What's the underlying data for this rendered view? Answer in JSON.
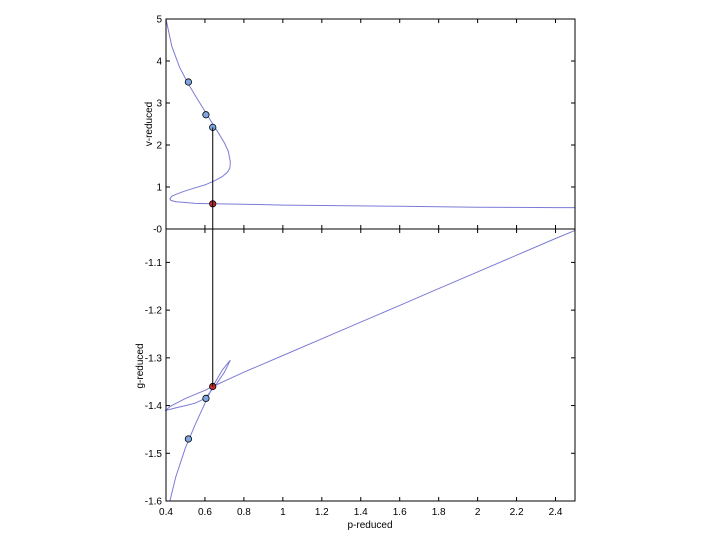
{
  "chart_data": [
    {
      "id": "top",
      "type": "line",
      "ylabel": "v-reduced",
      "xlabel": "",
      "xlim": [
        0.4,
        2.5
      ],
      "ylim": [
        0,
        5
      ],
      "yticks": [
        0,
        1,
        2,
        3,
        4,
        5
      ],
      "ytick_labels": [
        "-0",
        "1",
        "2",
        "3",
        "4",
        "5"
      ],
      "show_x_ticklabels": false,
      "grid": false,
      "line_color": "#7b7bd6",
      "series": [
        {
          "x": [
            0.4,
            0.43,
            0.47,
            0.515,
            0.56,
            0.6,
            0.64,
            0.67,
            0.7,
            0.72,
            0.73,
            0.728,
            0.715,
            0.69,
            0.65,
            0.6,
            0.55,
            0.5,
            0.46,
            0.43,
            0.42,
            0.425,
            0.45,
            0.5,
            0.55,
            0.64,
            0.8,
            1.0,
            1.2,
            1.4,
            1.6,
            1.8,
            2.0,
            2.2,
            2.4,
            2.5
          ],
          "y": [
            5.0,
            4.35,
            3.85,
            3.45,
            3.1,
            2.8,
            2.5,
            2.28,
            2.05,
            1.85,
            1.6,
            1.45,
            1.35,
            1.25,
            1.15,
            1.05,
            0.98,
            0.91,
            0.84,
            0.78,
            0.72,
            0.68,
            0.65,
            0.63,
            0.61,
            0.6,
            0.59,
            0.57,
            0.56,
            0.55,
            0.54,
            0.53,
            0.52,
            0.515,
            0.51,
            0.51
          ]
        }
      ],
      "points": [
        {
          "x": 0.515,
          "y": 3.5,
          "color": "#7fa6e0"
        },
        {
          "x": 0.605,
          "y": 2.72,
          "color": "#7fa6e0"
        },
        {
          "x": 0.64,
          "y": 2.42,
          "color": "#7fa6e0"
        },
        {
          "x": 0.64,
          "y": 0.6,
          "color": "#c03030"
        }
      ]
    },
    {
      "id": "bottom",
      "type": "line",
      "ylabel": "g-reduced",
      "xlabel": "p-reduced",
      "xlim": [
        0.4,
        2.5
      ],
      "ylim": [
        -1.6,
        -1.03
      ],
      "yticks": [
        -1.6,
        -1.5,
        -1.4,
        -1.3,
        -1.2,
        -1.1
      ],
      "ytick_labels": [
        "-1.6",
        "-1.5",
        "-1.4",
        "-1.3",
        "-1.2",
        "-1.1"
      ],
      "xticks": [
        0.4,
        0.6,
        0.8,
        1,
        1.2,
        1.4,
        1.6,
        1.8,
        2,
        2.2,
        2.4
      ],
      "xtick_labels": [
        "0.4",
        "0.6",
        "0.8",
        "1",
        "1.2",
        "1.4",
        "1.6",
        "1.8",
        "2",
        "2.2",
        "2.4"
      ],
      "grid": false,
      "line_color": "#7b7bd6",
      "series": [
        {
          "x": [
            0.42,
            0.45,
            0.5,
            0.55,
            0.6,
            0.64,
            0.69,
            0.72,
            0.73
          ],
          "y": [
            -1.6,
            -1.55,
            -1.488,
            -1.44,
            -1.395,
            -1.36,
            -1.325,
            -1.31,
            -1.305
          ]
        },
        {
          "x": [
            0.73,
            0.7,
            0.65,
            0.6,
            0.55,
            0.5,
            0.45,
            0.42,
            0.4,
            0.42,
            0.5,
            0.6,
            0.64,
            0.8,
            1.0,
            1.2,
            1.4,
            1.6,
            1.8,
            2.0,
            2.2,
            2.4,
            2.5
          ],
          "y": [
            -1.305,
            -1.33,
            -1.36,
            -1.385,
            -1.395,
            -1.4,
            -1.405,
            -1.408,
            -1.41,
            -1.402,
            -1.385,
            -1.368,
            -1.36,
            -1.33,
            -1.295,
            -1.26,
            -1.225,
            -1.19,
            -1.155,
            -1.12,
            -1.085,
            -1.05,
            -1.033
          ]
        }
      ],
      "points": [
        {
          "x": 0.515,
          "y": -1.47,
          "color": "#7fa6e0"
        },
        {
          "x": 0.605,
          "y": -1.385,
          "color": "#7fa6e0"
        },
        {
          "x": 0.64,
          "y": -1.36,
          "color": "#c03030"
        }
      ]
    }
  ],
  "connector": {
    "x": 0.64,
    "from_top_y": 2.42,
    "to_bottom_y": -1.36,
    "color": "#000000"
  }
}
